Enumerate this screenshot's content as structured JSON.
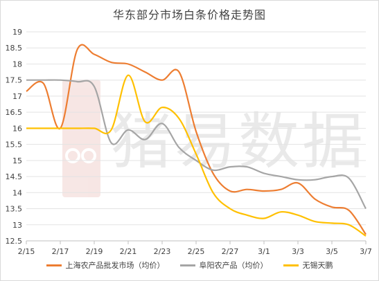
{
  "chart_data": {
    "type": "line",
    "title": "华东部分市场白条价格走势图",
    "watermark": "猪易数据",
    "ylim": [
      12.5,
      19
    ],
    "yticks": [
      "12.5",
      "13",
      "13.5",
      "14",
      "14.5",
      "15",
      "15.5",
      "16",
      "16.5",
      "17",
      "17.5",
      "18",
      "18.5",
      "19"
    ],
    "xticks": [
      "2/15",
      "2/17",
      "2/19",
      "2/21",
      "2/23",
      "2/25",
      "2/27",
      "3/1",
      "3/3",
      "3/5",
      "3/7"
    ],
    "x": [
      "2/15",
      "2/16",
      "2/17",
      "2/18",
      "2/19",
      "2/20",
      "2/21",
      "2/22",
      "2/23",
      "2/24",
      "2/25",
      "2/26",
      "2/27",
      "2/28",
      "3/1",
      "3/2",
      "3/3",
      "3/4",
      "3/5",
      "3/6",
      "3/7"
    ],
    "grid": "horizontal",
    "legend_position": "bottom",
    "series": [
      {
        "name": "上海农产品批发市场（均价）",
        "color": "#ed7d31",
        "values": [
          17.15,
          17.4,
          16.0,
          18.45,
          18.3,
          18.05,
          18.0,
          17.75,
          17.5,
          17.75,
          15.9,
          14.6,
          14.05,
          14.1,
          14.05,
          14.1,
          14.3,
          13.8,
          13.55,
          13.45,
          12.7
        ]
      },
      {
        "name": "阜阳农产品（均价）",
        "color": "#a5a5a5",
        "values": [
          17.5,
          17.5,
          17.5,
          17.45,
          17.3,
          15.55,
          15.95,
          15.65,
          16.15,
          15.4,
          15.0,
          14.7,
          14.8,
          14.8,
          14.6,
          14.5,
          14.4,
          14.4,
          14.5,
          14.45,
          13.5
        ]
      },
      {
        "name": "无锡天鹏",
        "color": "#ffc000",
        "values": [
          16.0,
          16.0,
          16.0,
          16.0,
          16.0,
          15.95,
          17.65,
          16.2,
          16.65,
          16.3,
          15.2,
          14.0,
          13.5,
          13.3,
          13.2,
          13.4,
          13.3,
          13.1,
          13.05,
          13.0,
          12.65
        ]
      }
    ]
  }
}
